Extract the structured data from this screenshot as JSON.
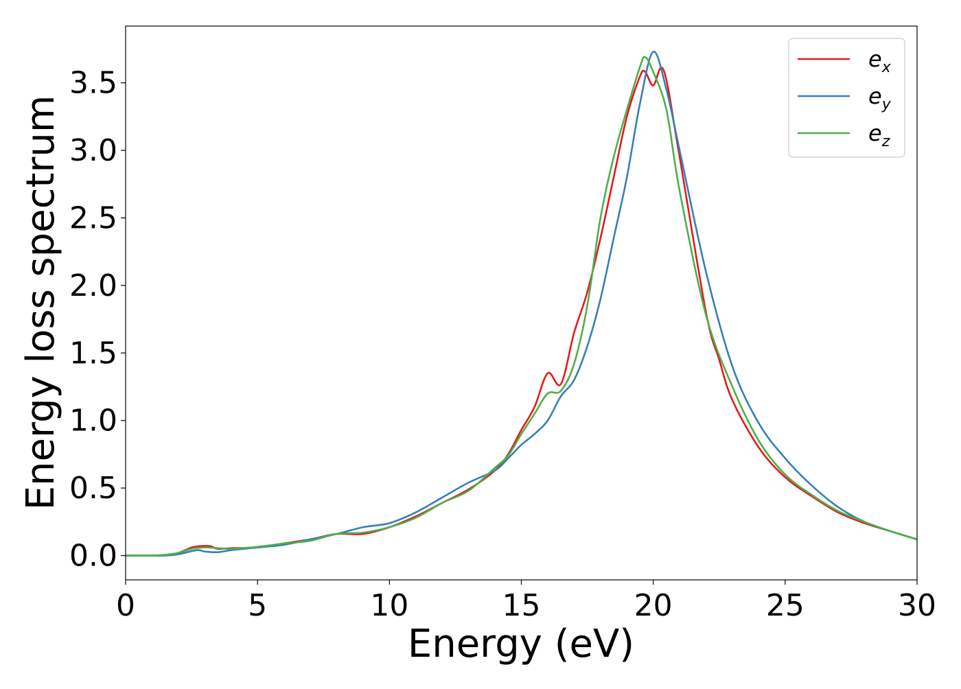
{
  "chart_data": {
    "type": "line",
    "title": "",
    "xlabel": "Energy (eV)",
    "ylabel": "Energy loss spectrum",
    "xlim": [
      0,
      30
    ],
    "ylim": [
      -0.18,
      3.92
    ],
    "xticks": [
      0,
      5,
      10,
      15,
      20,
      25,
      30
    ],
    "xtick_labels": [
      "0",
      "5",
      "10",
      "15",
      "20",
      "25",
      "30"
    ],
    "yticks": [
      0.0,
      0.5,
      1.0,
      1.5,
      2.0,
      2.5,
      3.0,
      3.5
    ],
    "ytick_labels": [
      "0.0",
      "0.5",
      "1.0",
      "1.5",
      "2.0",
      "2.5",
      "3.0",
      "3.5"
    ],
    "grid": false,
    "legend_position": "top-right",
    "series": [
      {
        "name": "e_x",
        "label_main": "e",
        "label_sub": "x",
        "color": "#e41a1c",
        "x": [
          0,
          1,
          1.5,
          2,
          2.5,
          2.8,
          3.2,
          3.5,
          4,
          5,
          6,
          7,
          8,
          9,
          10,
          11,
          12,
          13,
          14,
          14.5,
          15,
          15.5,
          16,
          16.5,
          17,
          17.5,
          18,
          18.5,
          19,
          19.5,
          19.7,
          20,
          20.4,
          21,
          22,
          22.5,
          23,
          24,
          25,
          26,
          27,
          28,
          29,
          30
        ],
        "y": [
          0,
          0,
          0.005,
          0.02,
          0.06,
          0.07,
          0.07,
          0.05,
          0.055,
          0.06,
          0.09,
          0.12,
          0.16,
          0.16,
          0.21,
          0.29,
          0.39,
          0.49,
          0.63,
          0.75,
          0.93,
          1.1,
          1.35,
          1.27,
          1.65,
          1.95,
          2.35,
          2.8,
          3.25,
          3.55,
          3.58,
          3.48,
          3.59,
          2.95,
          1.8,
          1.45,
          1.15,
          0.8,
          0.58,
          0.44,
          0.32,
          0.24,
          0.18,
          0.12
        ]
      },
      {
        "name": "e_y",
        "label_main": "e",
        "label_sub": "y",
        "color": "#377eb8",
        "x": [
          0,
          1,
          1.5,
          2,
          2.7,
          3,
          3.5,
          4,
          5,
          6,
          7,
          8,
          9,
          10,
          11,
          12,
          13,
          14,
          14.5,
          15,
          15.5,
          16,
          16.5,
          17,
          17.5,
          18,
          18.5,
          19,
          19.5,
          20,
          20.5,
          21,
          22,
          23,
          24,
          25,
          26,
          27,
          28,
          29,
          30
        ],
        "y": [
          0,
          0,
          0,
          0.01,
          0.04,
          0.03,
          0.025,
          0.04,
          0.06,
          0.08,
          0.12,
          0.16,
          0.21,
          0.24,
          0.32,
          0.43,
          0.54,
          0.63,
          0.72,
          0.82,
          0.9,
          1.0,
          1.18,
          1.3,
          1.55,
          1.9,
          2.35,
          2.8,
          3.35,
          3.73,
          3.45,
          3.0,
          2.1,
          1.4,
          0.98,
          0.72,
          0.52,
          0.36,
          0.25,
          0.18,
          0.12
        ]
      },
      {
        "name": "e_z",
        "label_main": "e",
        "label_sub": "z",
        "color": "#4daf4a",
        "x": [
          0,
          1,
          1.5,
          2,
          2.5,
          3,
          3.5,
          4,
          5,
          6,
          7,
          8,
          9,
          10,
          11,
          12,
          13,
          14,
          14.5,
          15,
          15.5,
          16,
          16.5,
          17,
          17.5,
          18,
          18.5,
          19,
          19.5,
          19.7,
          20,
          20.5,
          21,
          22,
          23,
          24,
          25,
          26,
          27,
          28,
          29,
          30
        ],
        "y": [
          0,
          0,
          0.005,
          0.02,
          0.05,
          0.06,
          0.055,
          0.05,
          0.065,
          0.09,
          0.11,
          0.16,
          0.17,
          0.21,
          0.28,
          0.39,
          0.48,
          0.65,
          0.74,
          0.9,
          1.05,
          1.2,
          1.22,
          1.42,
          1.85,
          2.5,
          2.95,
          3.3,
          3.62,
          3.69,
          3.58,
          3.3,
          2.7,
          1.78,
          1.25,
          0.85,
          0.6,
          0.45,
          0.33,
          0.25,
          0.18,
          0.12
        ]
      }
    ]
  }
}
